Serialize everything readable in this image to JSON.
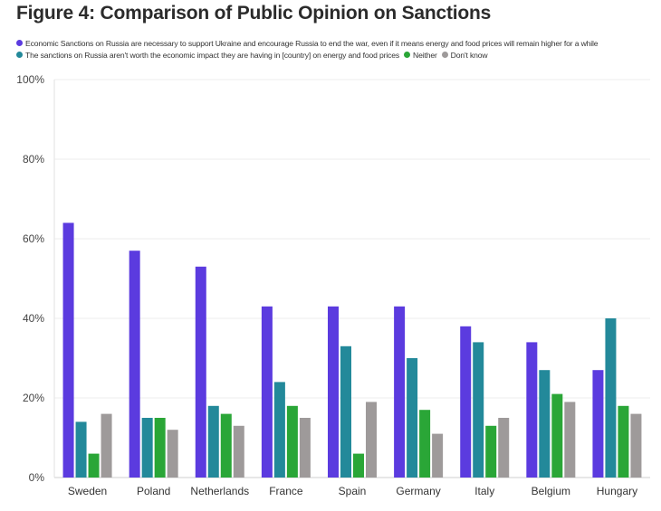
{
  "chart_data": {
    "type": "bar",
    "title": "Figure 4: Comparison of Public Opinion on Sanctions",
    "categories": [
      "Sweden",
      "Poland",
      "Netherlands",
      "France",
      "Spain",
      "Germany",
      "Italy",
      "Belgium",
      "Hungary"
    ],
    "series": [
      {
        "name": "Economic Sanctions on Russia are necessary to support Ukraine and encourage Russia to end the war, even if it means energy and food prices will remain higher for a while",
        "color": "#5b3bdf",
        "values": [
          64,
          57,
          53,
          43,
          43,
          43,
          38,
          34,
          27
        ]
      },
      {
        "name": "The sanctions on Russia aren't worth the economic impact they are having in [country] on energy and food prices",
        "color": "#23899a",
        "values": [
          14,
          15,
          18,
          24,
          33,
          30,
          34,
          27,
          40
        ]
      },
      {
        "name": "Neither",
        "color": "#2aa637",
        "values": [
          6,
          15,
          16,
          18,
          6,
          17,
          13,
          21,
          18
        ]
      },
      {
        "name": "Don't know",
        "color": "#9e9a9a",
        "values": [
          16,
          12,
          13,
          15,
          19,
          11,
          15,
          19,
          16
        ]
      }
    ],
    "ylim": [
      0,
      100
    ],
    "yticks": [
      0,
      20,
      40,
      60,
      80,
      100
    ],
    "ytick_labels": [
      "0%",
      "20%",
      "40%",
      "60%",
      "80%",
      "100%"
    ],
    "grid": true,
    "legend_position": "top"
  }
}
